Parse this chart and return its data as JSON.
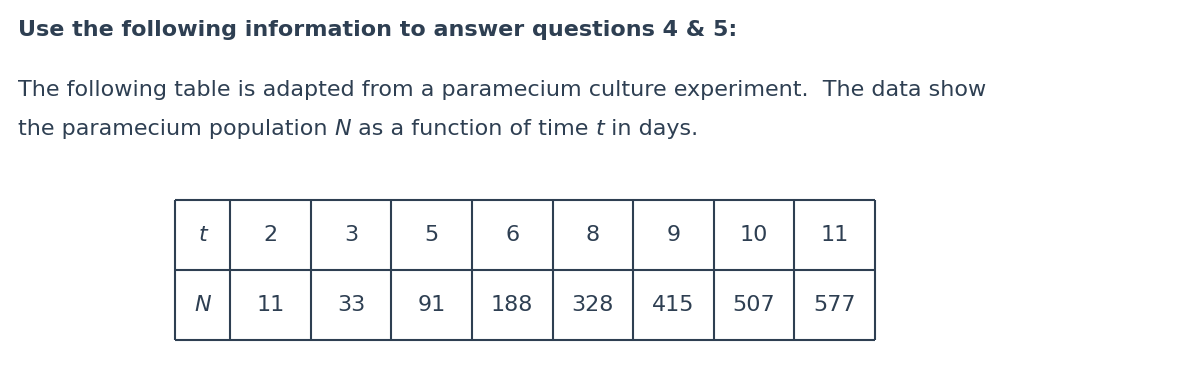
{
  "title": "Use the following information to answer questions 4 & 5:",
  "body_line1": "The following table is adapted from a paramecium culture experiment.  The data show",
  "body_line2_parts": [
    {
      "text": "the paramecium population ",
      "italic": false
    },
    {
      "text": "N",
      "italic": true
    },
    {
      "text": " as a function of time ",
      "italic": false
    },
    {
      "text": "t",
      "italic": true
    },
    {
      "text": " in days.",
      "italic": false
    }
  ],
  "t_values": [
    "t",
    "2",
    "3",
    "5",
    "6",
    "8",
    "9",
    "10",
    "11"
  ],
  "N_values": [
    "N",
    "11",
    "33",
    "91",
    "188",
    "328",
    "415",
    "507",
    "577"
  ],
  "text_color": "#2e3f52",
  "background_color": "#ffffff",
  "title_fontsize": 16,
  "body_fontsize": 16,
  "table_fontsize": 16
}
